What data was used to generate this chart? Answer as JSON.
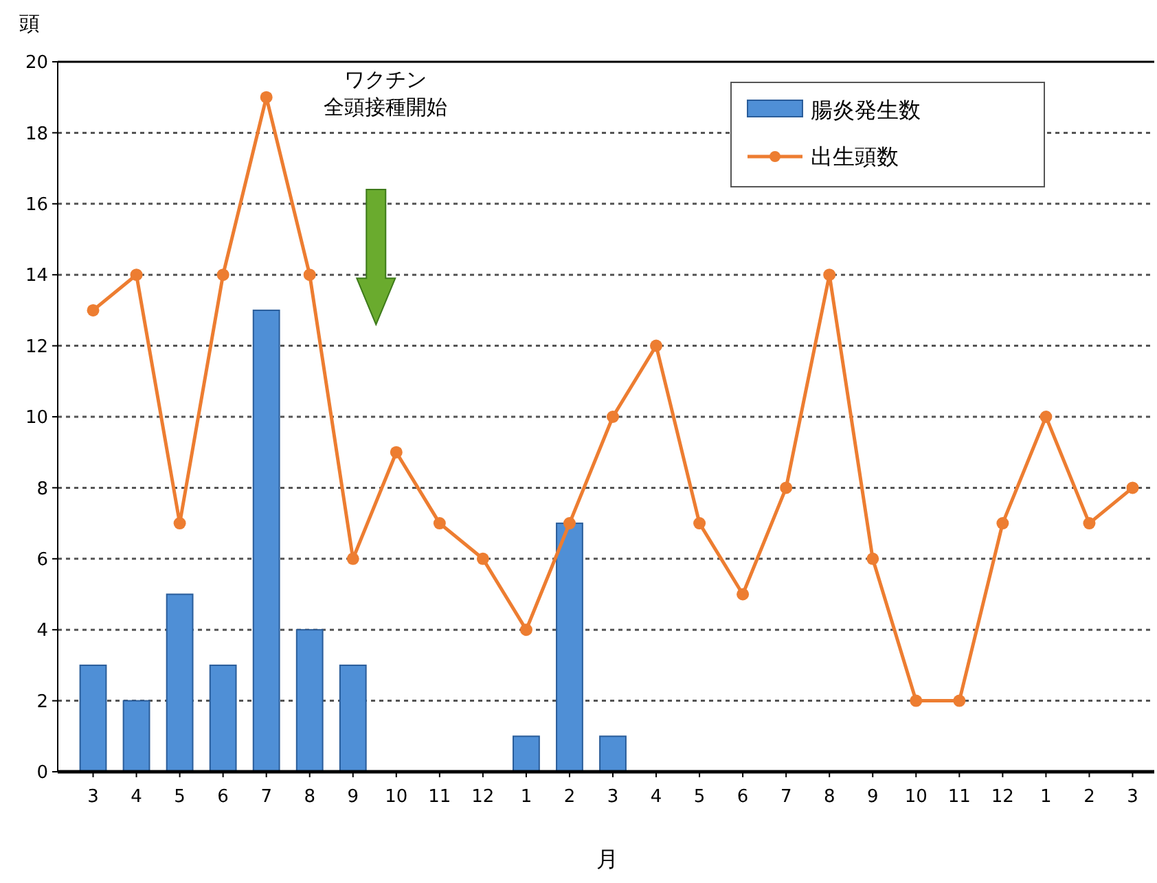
{
  "chart_data": {
    "type": "bar",
    "xlabel": "月",
    "ylabel": "頭",
    "categories": [
      "3",
      "4",
      "5",
      "6",
      "7",
      "8",
      "9",
      "10",
      "11",
      "12",
      "1",
      "2",
      "3",
      "4",
      "5",
      "6",
      "7",
      "8",
      "9",
      "10",
      "11",
      "12",
      "1",
      "2",
      "3"
    ],
    "series": [
      {
        "name": "腸炎発生数",
        "color": "#4f8fd6",
        "values": [
          3,
          2,
          5,
          3,
          13,
          4,
          3,
          0,
          0,
          0,
          1,
          7,
          1,
          null,
          null,
          null,
          null,
          null,
          null,
          null,
          null,
          null,
          null,
          null,
          null
        ]
      },
      {
        "name": "出生頭数",
        "type": "line",
        "color": "#ed7d31",
        "marker": "circle",
        "values": [
          13,
          14,
          7,
          14,
          19,
          14,
          6,
          9,
          7,
          6,
          4,
          7,
          10,
          12,
          7,
          5,
          8,
          14,
          6,
          2,
          2,
          7,
          10,
          7,
          8
        ]
      }
    ],
    "ylim": [
      0,
      20
    ],
    "yticks": [
      0,
      2,
      4,
      6,
      8,
      10,
      12,
      14,
      16,
      18,
      20
    ],
    "grid": "y",
    "legend": "top right",
    "annotations": [
      "ワクチン",
      "全頭接種開始"
    ]
  }
}
